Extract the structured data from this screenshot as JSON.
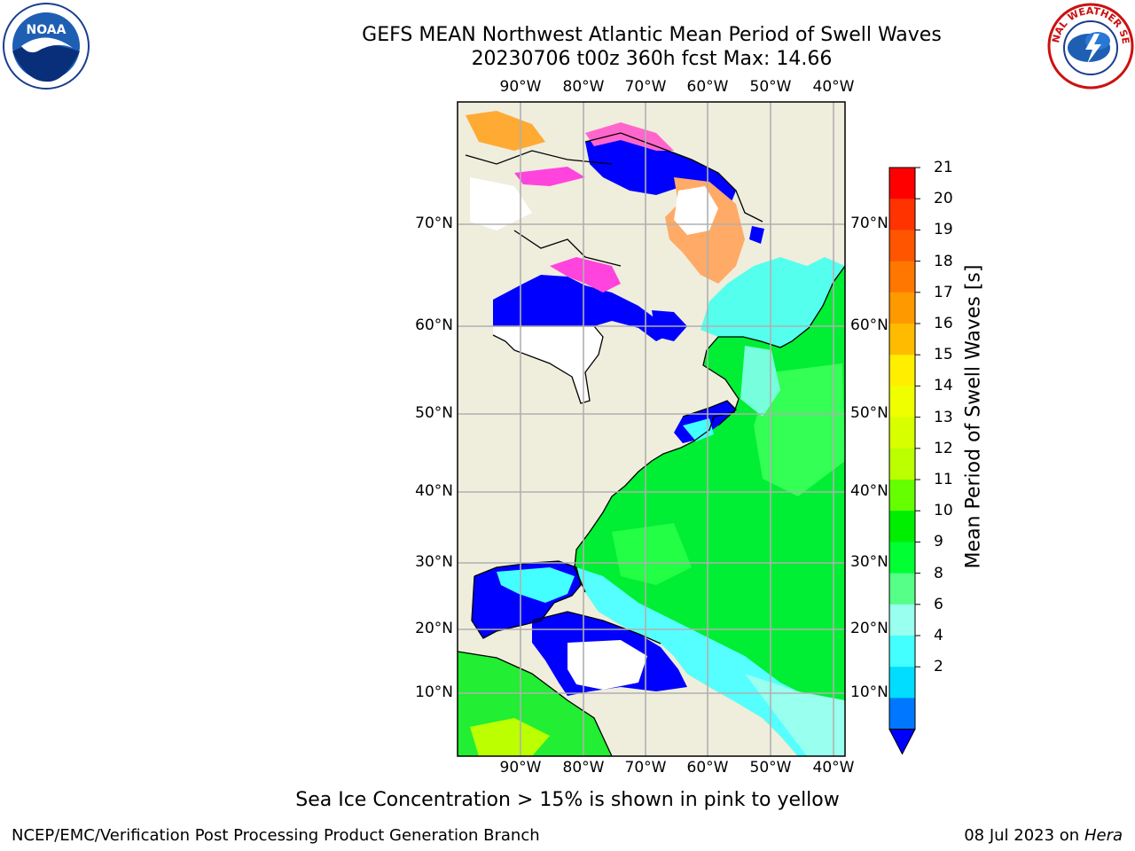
{
  "title": {
    "line1": "GEFS MEAN Northwest Atlantic Mean Period of Swell Waves",
    "line2": "20230706 t00z 360h fcst   Max: 14.66"
  },
  "lon_labels": [
    "90°W",
    "80°W",
    "70°W",
    "60°W",
    "50°W",
    "40°W"
  ],
  "lat_labels": [
    "70°N",
    "60°N",
    "50°N",
    "40°N",
    "30°N",
    "20°N",
    "10°N"
  ],
  "colorbar": {
    "label": "Mean Period of Swell Waves [s]",
    "ticks": [
      "21",
      "20",
      "19",
      "18",
      "17",
      "16",
      "15",
      "14",
      "13",
      "12",
      "11",
      "10",
      "9",
      "8",
      "6",
      "4",
      "2"
    ],
    "colors": [
      "#ff0000",
      "#ff3300",
      "#ff5500",
      "#ff7700",
      "#ff9900",
      "#ffbb00",
      "#ffee00",
      "#f0ff00",
      "#d8ff00",
      "#bbff00",
      "#66ff00",
      "#00ee00",
      "#00ff33",
      "#55ff88",
      "#99ffee",
      "#44ffff",
      "#00ddff",
      "#0077ff",
      "#0000ff"
    ]
  },
  "note": "Sea Ice Concentration > 15% is shown in pink to yellow",
  "footer": {
    "left": "NCEP/EMC/Verification Post Processing Product Generation Branch",
    "right_prefix": "08 Jul 2023 on ",
    "right_host": "Hera"
  },
  "logos": {
    "left": "NOAA",
    "right": "NATIONAL WEATHER SERVICE"
  }
}
